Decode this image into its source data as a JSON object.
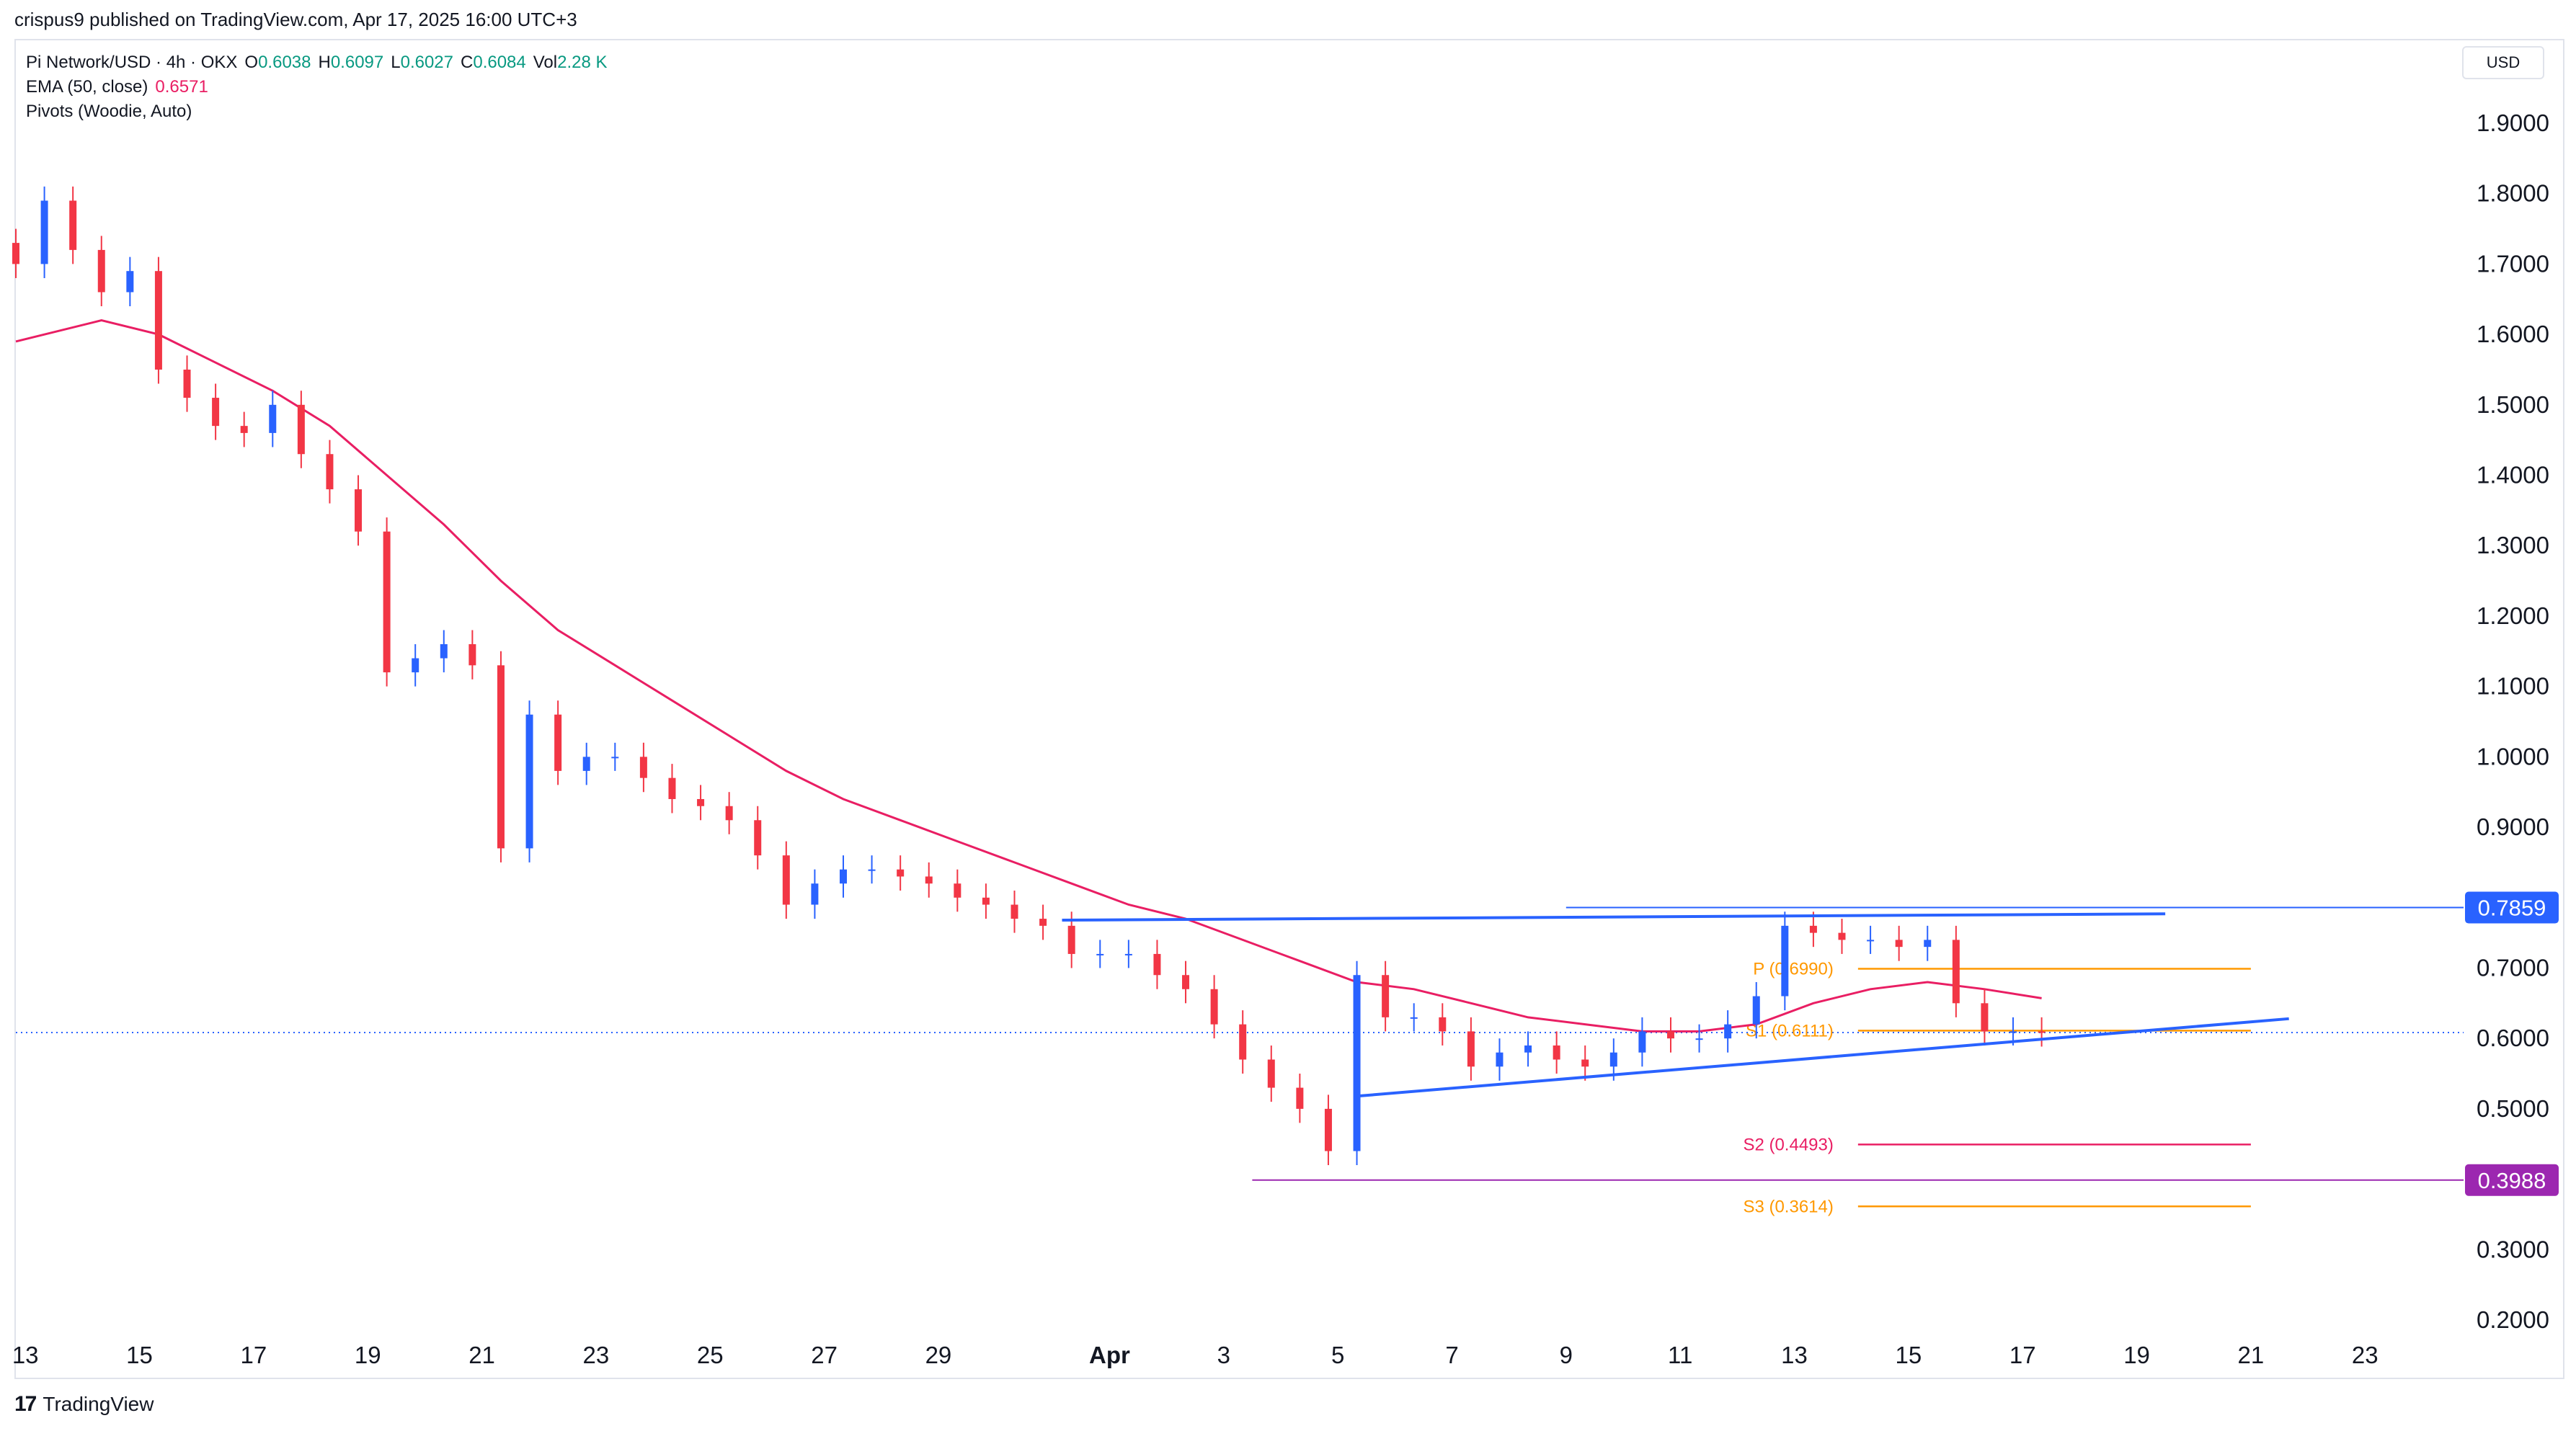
{
  "header": {
    "published": "crispus9 published on TradingView.com, Apr 17, 2025 16:00 UTC+3"
  },
  "legend": {
    "symbol": "Pi Network/USD · 4h · OKX",
    "o_label": "O",
    "o_value": "0.6038",
    "h_label": "H",
    "h_value": "0.6097",
    "l_label": "L",
    "l_value": "0.6027",
    "c_label": "C",
    "c_value": "0.6084",
    "vol_label": "Vol",
    "vol_value": "2.28 K",
    "ema_label": "EMA (50, close)",
    "ema_value": "0.6571",
    "pivots_label": "Pivots (Woodie, Auto)"
  },
  "currency": "USD",
  "brand": {
    "logo_text": "17",
    "name": "TradingView"
  },
  "colors": {
    "up": "#2962ff",
    "down": "#f23645",
    "ema": "#e91e63",
    "trendline": "#2962ff",
    "pivot_orange": "#ff9800",
    "pivot_pink": "#e91e63",
    "support_line": "#9c27b0",
    "badge_blue": "#2962ff",
    "badge_purple": "#9c27b0",
    "price_line": "#2962ff",
    "axis_text": "#131722"
  },
  "chart_data": {
    "type": "candlestick",
    "title": "Pi Network/USD · 4h · OKX",
    "ylim": [
      0.15,
      1.97
    ],
    "y_scale": "linear",
    "y_ticks": [
      "1.9000",
      "1.8000",
      "1.7000",
      "1.6000",
      "1.5000",
      "1.4000",
      "1.3000",
      "1.2000",
      "1.1000",
      "1.0000",
      "0.9000",
      "0.7000",
      "0.6000",
      "0.5000",
      "0.3000",
      "0.2000"
    ],
    "x_ticks": [
      "13",
      "15",
      "17",
      "19",
      "21",
      "23",
      "25",
      "27",
      "29",
      "Apr",
      "3",
      "5",
      "7",
      "9",
      "11",
      "13",
      "15",
      "17",
      "19",
      "21",
      "23"
    ],
    "x_tick_dates": [
      "2025-03-13",
      "2025-03-15",
      "2025-03-17",
      "2025-03-19",
      "2025-03-21",
      "2025-03-23",
      "2025-03-25",
      "2025-03-27",
      "2025-03-29",
      "2025-04-01",
      "2025-04-03",
      "2025-04-05",
      "2025-04-07",
      "2025-04-09",
      "2025-04-11",
      "2025-04-13",
      "2025-04-15",
      "2025-04-17",
      "2025-04-19",
      "2025-04-21",
      "2025-04-23"
    ],
    "x_range": [
      "2025-03-12T20:00",
      "2025-04-24T12:00"
    ],
    "legend_position": "top-left",
    "series": [
      {
        "name": "Pi Network/USD",
        "kind": "candles",
        "closes": [
          [
            "2025-03-12T20:00",
            1.7
          ],
          [
            "2025-03-13T08:00",
            1.79
          ],
          [
            "2025-03-13T20:00",
            1.72
          ],
          [
            "2025-03-14T08:00",
            1.66
          ],
          [
            "2025-03-14T20:00",
            1.69
          ],
          [
            "2025-03-15T08:00",
            1.55
          ],
          [
            "2025-03-15T20:00",
            1.51
          ],
          [
            "2025-03-16T08:00",
            1.47
          ],
          [
            "2025-03-16T20:00",
            1.46
          ],
          [
            "2025-03-17T08:00",
            1.5
          ],
          [
            "2025-03-17T20:00",
            1.43
          ],
          [
            "2025-03-18T08:00",
            1.38
          ],
          [
            "2025-03-18T20:00",
            1.32
          ],
          [
            "2025-03-19T08:00",
            1.12
          ],
          [
            "2025-03-19T20:00",
            1.14
          ],
          [
            "2025-03-20T08:00",
            1.16
          ],
          [
            "2025-03-20T20:00",
            1.13
          ],
          [
            "2025-03-21T08:00",
            0.87
          ],
          [
            "2025-03-21T20:00",
            1.06
          ],
          [
            "2025-03-22T08:00",
            0.98
          ],
          [
            "2025-03-22T20:00",
            1.0
          ],
          [
            "2025-03-23T08:00",
            1.0
          ],
          [
            "2025-03-23T20:00",
            0.97
          ],
          [
            "2025-03-24T08:00",
            0.94
          ],
          [
            "2025-03-24T20:00",
            0.93
          ],
          [
            "2025-03-25T08:00",
            0.91
          ],
          [
            "2025-03-25T20:00",
            0.86
          ],
          [
            "2025-03-26T08:00",
            0.79
          ],
          [
            "2025-03-26T20:00",
            0.82
          ],
          [
            "2025-03-27T08:00",
            0.84
          ],
          [
            "2025-03-27T20:00",
            0.84
          ],
          [
            "2025-03-28T08:00",
            0.83
          ],
          [
            "2025-03-28T20:00",
            0.82
          ],
          [
            "2025-03-29T08:00",
            0.8
          ],
          [
            "2025-03-29T20:00",
            0.79
          ],
          [
            "2025-03-30T08:00",
            0.77
          ],
          [
            "2025-03-30T20:00",
            0.76
          ],
          [
            "2025-03-31T08:00",
            0.72
          ],
          [
            "2025-03-31T20:00",
            0.72
          ],
          [
            "2025-04-01T08:00",
            0.72
          ],
          [
            "2025-04-01T20:00",
            0.69
          ],
          [
            "2025-04-02T08:00",
            0.67
          ],
          [
            "2025-04-02T20:00",
            0.62
          ],
          [
            "2025-04-03T08:00",
            0.57
          ],
          [
            "2025-04-03T20:00",
            0.53
          ],
          [
            "2025-04-04T08:00",
            0.5
          ],
          [
            "2025-04-04T20:00",
            0.44
          ],
          [
            "2025-04-05T08:00",
            0.69
          ],
          [
            "2025-04-05T20:00",
            0.63
          ],
          [
            "2025-04-06T08:00",
            0.63
          ],
          [
            "2025-04-06T20:00",
            0.61
          ],
          [
            "2025-04-07T08:00",
            0.56
          ],
          [
            "2025-04-07T20:00",
            0.58
          ],
          [
            "2025-04-08T08:00",
            0.59
          ],
          [
            "2025-04-08T20:00",
            0.57
          ],
          [
            "2025-04-09T08:00",
            0.56
          ],
          [
            "2025-04-09T20:00",
            0.58
          ],
          [
            "2025-04-10T08:00",
            0.61
          ],
          [
            "2025-04-10T20:00",
            0.6
          ],
          [
            "2025-04-11T08:00",
            0.6
          ],
          [
            "2025-04-11T20:00",
            0.62
          ],
          [
            "2025-04-12T08:00",
            0.66
          ],
          [
            "2025-04-12T20:00",
            0.76
          ],
          [
            "2025-04-13T08:00",
            0.75
          ],
          [
            "2025-04-13T20:00",
            0.74
          ],
          [
            "2025-04-14T08:00",
            0.74
          ],
          [
            "2025-04-14T20:00",
            0.73
          ],
          [
            "2025-04-15T08:00",
            0.74
          ],
          [
            "2025-04-15T20:00",
            0.65
          ],
          [
            "2025-04-16T08:00",
            0.61
          ],
          [
            "2025-04-16T20:00",
            0.61
          ],
          [
            "2025-04-17T08:00",
            0.6084
          ]
        ]
      },
      {
        "name": "EMA (50, close)",
        "kind": "line",
        "points": [
          [
            "2025-03-12T20:00",
            1.59
          ],
          [
            "2025-03-14T08:00",
            1.62
          ],
          [
            "2025-03-15T08:00",
            1.6
          ],
          [
            "2025-03-16T08:00",
            1.56
          ],
          [
            "2025-03-17T08:00",
            1.52
          ],
          [
            "2025-03-18T08:00",
            1.47
          ],
          [
            "2025-03-19T08:00",
            1.4
          ],
          [
            "2025-03-20T08:00",
            1.33
          ],
          [
            "2025-03-21T08:00",
            1.25
          ],
          [
            "2025-03-22T08:00",
            1.18
          ],
          [
            "2025-03-23T08:00",
            1.13
          ],
          [
            "2025-03-24T08:00",
            1.08
          ],
          [
            "2025-03-25T08:00",
            1.03
          ],
          [
            "2025-03-26T08:00",
            0.98
          ],
          [
            "2025-03-27T08:00",
            0.94
          ],
          [
            "2025-03-28T08:00",
            0.91
          ],
          [
            "2025-03-29T08:00",
            0.88
          ],
          [
            "2025-03-30T08:00",
            0.85
          ],
          [
            "2025-03-31T08:00",
            0.82
          ],
          [
            "2025-04-01T08:00",
            0.79
          ],
          [
            "2025-04-02T08:00",
            0.77
          ],
          [
            "2025-04-03T08:00",
            0.74
          ],
          [
            "2025-04-04T08:00",
            0.71
          ],
          [
            "2025-04-05T08:00",
            0.68
          ],
          [
            "2025-04-06T08:00",
            0.67
          ],
          [
            "2025-04-07T08:00",
            0.65
          ],
          [
            "2025-04-08T08:00",
            0.63
          ],
          [
            "2025-04-09T08:00",
            0.62
          ],
          [
            "2025-04-10T08:00",
            0.61
          ],
          [
            "2025-04-11T08:00",
            0.61
          ],
          [
            "2025-04-12T08:00",
            0.62
          ],
          [
            "2025-04-13T08:00",
            0.65
          ],
          [
            "2025-04-14T08:00",
            0.67
          ],
          [
            "2025-04-15T08:00",
            0.68
          ],
          [
            "2025-04-16T08:00",
            0.67
          ],
          [
            "2025-04-17T08:00",
            0.6571
          ]
        ]
      }
    ],
    "pivots": [
      {
        "label": "P (0.6990)",
        "value": 0.699,
        "color": "#ff9800"
      },
      {
        "label": "S1 (0.6111)",
        "value": 0.6111,
        "color": "#ff9800"
      },
      {
        "label": "S2 (0.4493)",
        "value": 0.4493,
        "color": "#e91e63"
      },
      {
        "label": "S3 (0.3614)",
        "value": 0.3614,
        "color": "#ff9800"
      }
    ],
    "horizontal_lines": [
      {
        "value": 0.7859,
        "from": "2025-04-09T00:00",
        "color": "#2962ff",
        "badge": "0.7859"
      },
      {
        "value": 0.3988,
        "from": "2025-04-03T12:00",
        "color": "#9c27b0",
        "badge": "0.3988"
      },
      {
        "value": 0.6084,
        "from": "2025-03-12T20:00",
        "color": "#2962ff",
        "style": "dotted"
      }
    ],
    "trendlines": [
      {
        "from": [
          "2025-03-31T04:00",
          0.768
        ],
        "to": [
          "2025-04-19T12:00",
          0.777
        ],
        "color": "#2962ff"
      },
      {
        "from": [
          "2025-04-05T08:00",
          0.518
        ],
        "to": [
          "2025-04-21T16:00",
          0.628
        ],
        "color": "#2962ff"
      }
    ]
  }
}
